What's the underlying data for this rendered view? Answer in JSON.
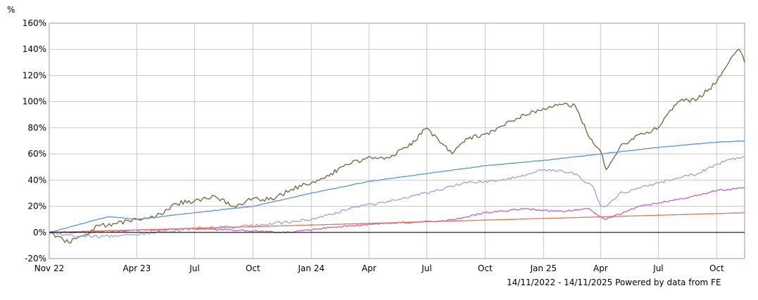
{
  "chart_data": {
    "type": "line",
    "y_unit": "%",
    "x_tick_labels": [
      "Nov 22",
      "Apr 23",
      "Jul",
      "Oct",
      "Jan 24",
      "Apr",
      "Jul",
      "Oct",
      "Jan 25",
      "Apr",
      "Jul",
      "Oct"
    ],
    "x_tick_dates": [
      "2022-11-14",
      "2023-04-01",
      "2023-07-01",
      "2023-10-01",
      "2024-01-01",
      "2024-04-01",
      "2024-07-01",
      "2024-10-01",
      "2025-01-01",
      "2025-04-01",
      "2025-07-01",
      "2025-10-01"
    ],
    "x_range": [
      "2022-11-14",
      "2025-11-14"
    ],
    "ylim": [
      -20,
      160
    ],
    "y_ticks": [
      -20,
      0,
      20,
      40,
      60,
      80,
      100,
      120,
      140,
      160
    ],
    "y_tick_labels": [
      "-20%",
      "0%",
      "20%",
      "40%",
      "60%",
      "80%",
      "100%",
      "120%",
      "140%",
      "160%"
    ],
    "grid": true,
    "legend": "none",
    "footer": "14/11/2022 - 14/11/2025 Powered by data from FE",
    "series": [
      {
        "color": "#7a6a4a",
        "x": [
          "2022-11-14",
          "2022-12-15",
          "2023-01-01",
          "2023-02-01",
          "2023-03-01",
          "2023-04-01",
          "2023-05-01",
          "2023-06-01",
          "2023-07-01",
          "2023-08-01",
          "2023-09-01",
          "2023-10-01",
          "2023-11-01",
          "2023-12-01",
          "2024-01-01",
          "2024-02-01",
          "2024-03-01",
          "2024-04-01",
          "2024-05-01",
          "2024-06-01",
          "2024-07-01",
          "2024-07-25",
          "2024-08-10",
          "2024-09-01",
          "2024-10-01",
          "2024-11-01",
          "2024-12-01",
          "2025-01-01",
          "2025-02-01",
          "2025-02-20",
          "2025-03-15",
          "2025-04-01",
          "2025-04-10",
          "2025-05-01",
          "2025-06-01",
          "2025-07-01",
          "2025-08-01",
          "2025-09-01",
          "2025-10-01",
          "2025-10-20",
          "2025-11-05",
          "2025-11-14"
        ],
        "values": [
          0,
          -8,
          -3,
          5,
          7,
          10,
          12,
          22,
          24,
          28,
          20,
          26,
          25,
          33,
          38,
          45,
          52,
          58,
          57,
          65,
          80,
          68,
          60,
          72,
          75,
          82,
          90,
          95,
          98,
          97,
          72,
          62,
          48,
          65,
          75,
          80,
          100,
          102,
          115,
          130,
          140,
          130
        ]
      },
      {
        "color": "#5b8ff0",
        "x": [
          "2022-11-14",
          "2022-12-15",
          "2023-01-15",
          "2023-02-15",
          "2023-04-01",
          "2023-07-01",
          "2023-10-01",
          "2024-01-01",
          "2024-04-01",
          "2024-07-01",
          "2024-10-01",
          "2025-01-01",
          "2025-04-01",
          "2025-07-01",
          "2025-10-01",
          "2025-11-14"
        ],
        "values": [
          0,
          4,
          8,
          12,
          10,
          15,
          20,
          30,
          39,
          45,
          51,
          55,
          60,
          65,
          69,
          70
        ]
      },
      {
        "color": "#9aa4dc",
        "x": [
          "2022-11-14",
          "2023-01-01",
          "2023-03-01",
          "2023-05-01",
          "2023-07-01",
          "2023-10-01",
          "2024-01-01",
          "2024-03-01",
          "2024-05-01",
          "2024-07-01",
          "2024-09-01",
          "2024-11-01",
          "2025-01-01",
          "2025-02-15",
          "2025-03-20",
          "2025-04-01",
          "2025-04-10",
          "2025-05-01",
          "2025-07-01",
          "2025-09-01",
          "2025-10-15",
          "2025-11-14"
        ],
        "values": [
          0,
          -3,
          -3,
          0,
          3,
          5,
          10,
          18,
          24,
          30,
          38,
          40,
          48,
          46,
          35,
          20,
          20,
          30,
          38,
          45,
          55,
          58
        ]
      },
      {
        "color": "#c060c8",
        "x": [
          "2022-11-14",
          "2023-03-01",
          "2023-07-01",
          "2023-10-01",
          "2023-12-01",
          "2024-02-01",
          "2024-05-01",
          "2024-08-01",
          "2024-10-01",
          "2024-12-01",
          "2025-02-01",
          "2025-03-15",
          "2025-04-01",
          "2025-04-10",
          "2025-06-01",
          "2025-08-01",
          "2025-10-01",
          "2025-11-14"
        ],
        "values": [
          0,
          1,
          3,
          1,
          0,
          4,
          7,
          9,
          15,
          18,
          16,
          18,
          12,
          10,
          20,
          25,
          32,
          34
        ]
      },
      {
        "color": "#f07050",
        "x": [
          "2022-11-14",
          "2025-11-14"
        ],
        "values": [
          0,
          15
        ]
      }
    ]
  }
}
